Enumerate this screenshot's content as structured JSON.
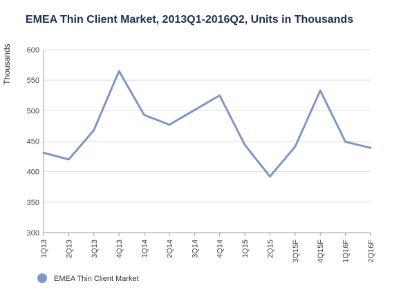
{
  "chart_data": {
    "type": "line",
    "title": "EMEA Thin Client Market, 2013Q1-2016Q2, Units in Thousands",
    "xlabel": "",
    "ylabel": "Thousands",
    "categories": [
      "1Q13",
      "2Q13",
      "3Q13",
      "4Q13",
      "1Q14",
      "2Q14",
      "3Q14",
      "4Q14",
      "1Q15",
      "2Q15",
      "3Q15F",
      "4Q15F",
      "1Q16F",
      "2Q16F"
    ],
    "series": [
      {
        "name": "EMEA Thin Client Market",
        "values": [
          431,
          420,
          468,
          565,
          493,
          477,
          501,
          525,
          444,
          392,
          441,
          533,
          449,
          439
        ]
      }
    ],
    "ylim": [
      300,
      600
    ],
    "yticks": [
      300,
      350,
      400,
      450,
      500,
      550,
      600
    ],
    "grid": true,
    "legend_position": "bottom-left",
    "colors": {
      "series": "#8096c4",
      "grid": "#dddddd",
      "axis": "#999999",
      "title": "#1f2d4d"
    }
  }
}
